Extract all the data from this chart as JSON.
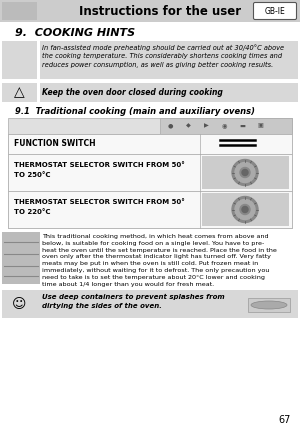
{
  "page_number": "67",
  "header_text": "Instructions for the user",
  "header_bg": "#cccccc",
  "gb_ie_label": "GB-IE",
  "section_title": "9.  COOKING HINTS",
  "hint1_text": "In fan-assisted mode preheating should be carried out at 30/40°C above\nthe cooking temperature. This considerably shortens cooking times and\nreduces power consumption, as well as giving better cooking results.",
  "hint1_bg": "#d8d8d8",
  "hint2_text": "Keep the oven door closed during cooking",
  "hint2_bg": "#d8d8d8",
  "subsection_title": "9.1  Traditional cooking (main and auxiliary ovens)",
  "icon_bar_bg": "#c8c8c8",
  "function_switch_label": "FUNCTION SWITCH",
  "thermostat1_label_line1": "THERMOSTAT SELECTOR SWITCH FROM 50°",
  "thermostat1_label_line2": "TO 250°C",
  "thermostat2_label_line1": "THERMOSTAT SELECTOR SWITCH FROM 50°",
  "thermostat2_label_line2": "TO 220°C",
  "body_text": "This traditional cooking method, in which heat comes from above and\nbelow, is suitable for cooking food on a single level. You have to pre-\nheat the oven until the set temperature is reached. Place the food in the\noven only after the thermostat indicator light has turned off. Very fatty\nmeats may be put in when the oven is still cold. Put frozen meat in\nimmediately, without waiting for it to defrost. The only precaution you\nneed to take is to set the temperature about 20°C lower and cooking\ntime about 1/4 longer than you would for fresh meat.",
  "tip_text": "Use deep containers to prevent splashes from\ndirtying the sides of the oven.",
  "tip_bg": "#d8d8d8",
  "bg_color": "#ffffff",
  "text_color": "#000000",
  "border_color": "#aaaaaa",
  "icon_left_bg": "#d8d8d8"
}
